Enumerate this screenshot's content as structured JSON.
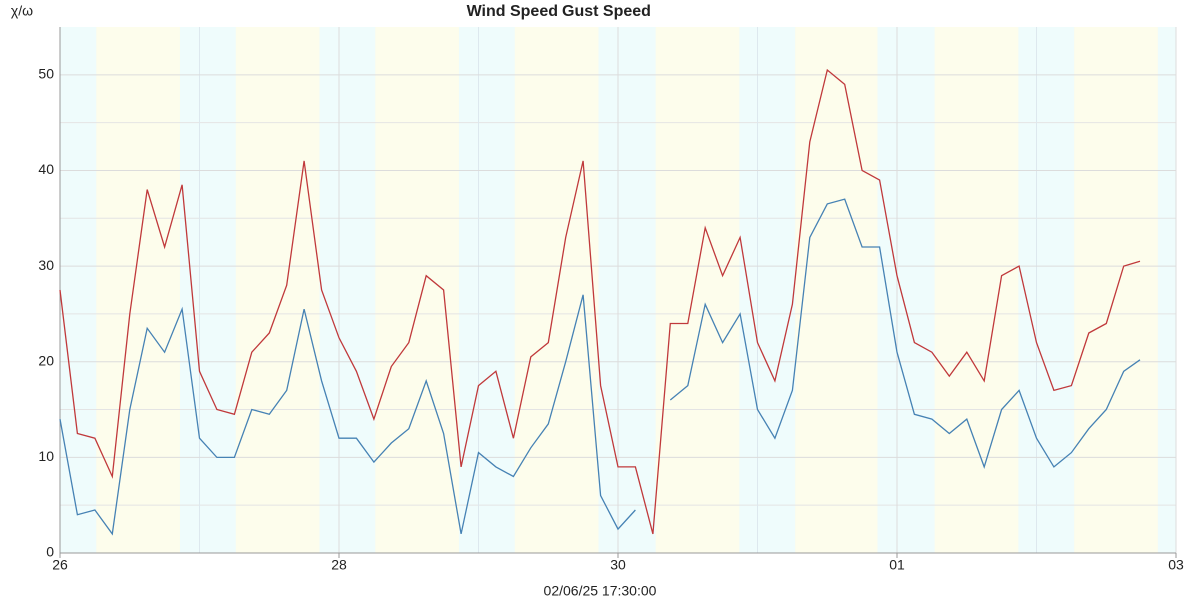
{
  "chart_data": {
    "type": "line",
    "y_label": "χ/ω",
    "x_label": "02/06/25 17:30:00",
    "xlim": [
      0,
      8
    ],
    "ylim": [
      0,
      55
    ],
    "xticks": [
      {
        "value": 0,
        "label": "26"
      },
      {
        "value": 2,
        "label": "28"
      },
      {
        "value": 4,
        "label": "30"
      },
      {
        "value": 6,
        "label": "01"
      },
      {
        "value": 8,
        "label": "03"
      }
    ],
    "yticks": [
      0,
      10,
      20,
      30,
      40,
      50
    ],
    "minor_xticks": [
      1,
      3,
      5,
      7
    ],
    "minor_yticks": [
      5,
      15,
      25,
      35,
      45
    ],
    "grid": true,
    "night_color": "#effcfc",
    "day_color": "#fdfdec",
    "night": [
      [
        0,
        0.26
      ],
      [
        0.86,
        1.26
      ],
      [
        1.86,
        2.26
      ],
      [
        2.86,
        3.26
      ],
      [
        3.86,
        4.27
      ],
      [
        4.87,
        5.27
      ],
      [
        5.86,
        6.27
      ],
      [
        6.87,
        7.27
      ],
      [
        7.87,
        8
      ]
    ],
    "x": [
      0,
      0.125,
      0.25,
      0.375,
      0.5,
      0.625,
      0.75,
      0.875,
      1,
      1.125,
      1.25,
      1.375,
      1.5,
      1.625,
      1.75,
      1.875,
      2,
      2.125,
      2.25,
      2.375,
      2.5,
      2.625,
      2.75,
      2.875,
      3,
      3.125,
      3.25,
      3.375,
      3.5,
      3.625,
      3.75,
      3.875,
      4,
      4.125,
      4.25,
      4.375,
      4.5,
      4.625,
      4.75,
      4.875,
      5,
      5.125,
      5.25,
      5.375,
      5.5,
      5.625,
      5.75,
      5.875,
      6,
      6.125,
      6.25,
      6.375,
      6.5,
      6.625,
      6.75,
      6.875,
      7,
      7.125,
      7.25,
      7.375,
      7.5,
      7.625,
      7.742
    ],
    "series": [
      {
        "name": "Wind Speed",
        "color": "#4682b4",
        "values": [
          14,
          4,
          4.5,
          2,
          15,
          23.5,
          21,
          25.5,
          12,
          10,
          10,
          15,
          14.5,
          17,
          25.5,
          18,
          12,
          12,
          9.5,
          11.5,
          13,
          18,
          12.5,
          2,
          10.5,
          9,
          8,
          11,
          13.5,
          20,
          27,
          6,
          2.5,
          4.5,
          null,
          16,
          17.5,
          26,
          22,
          25,
          15,
          12,
          17,
          33,
          36.5,
          37,
          32,
          32,
          21,
          14.5,
          14,
          12.5,
          14,
          9,
          15,
          17,
          12,
          9,
          10.5,
          13,
          15,
          19,
          20.2
        ]
      },
      {
        "name": "Gust Speed",
        "color": "#c0393b",
        "values": [
          27.5,
          12.5,
          12,
          8,
          25,
          38,
          32,
          38.5,
          19,
          15,
          14.5,
          21,
          23,
          28,
          41,
          27.5,
          22.5,
          19,
          14,
          19.5,
          22,
          29,
          27.5,
          9,
          17.5,
          19,
          12,
          20.5,
          22,
          33,
          41,
          17.5,
          9,
          9,
          2,
          24,
          24,
          34,
          29,
          33,
          22,
          18,
          26,
          43,
          50.5,
          49,
          40,
          39,
          29,
          22,
          21,
          18.5,
          21,
          18,
          29,
          30,
          22,
          17,
          17.5,
          23,
          24,
          30,
          30.5
        ]
      }
    ]
  }
}
